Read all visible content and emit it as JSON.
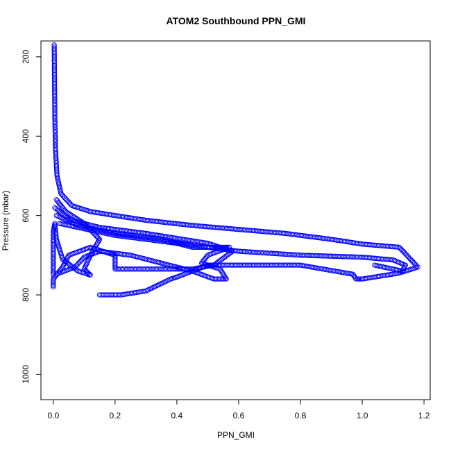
{
  "chart_data": {
    "type": "scatter",
    "title": "ATOM2 Southbound PPN_GMI",
    "xlabel": "PPN_GMI",
    "ylabel": "Pressure (mbar)",
    "xlim": [
      -0.04,
      1.22
    ],
    "ylim": [
      1064,
      160
    ],
    "y_reversed": true,
    "xticks": [
      0.0,
      0.2,
      0.4,
      0.6,
      0.8,
      1.0,
      1.2
    ],
    "xtick_labels": [
      "0.0",
      "0.2",
      "0.4",
      "0.6",
      "0.8",
      "1.0",
      "1.2"
    ],
    "yticks": [
      200,
      400,
      600,
      800,
      1000
    ],
    "ytick_labels": [
      "200",
      "400",
      "600",
      "800",
      "1000"
    ],
    "grid": false,
    "marker": "open-circle",
    "color": "#0000ff",
    "series": [
      {
        "points": [
          [
            0.003,
            170
          ],
          [
            0.004,
            260
          ],
          [
            0.005,
            350
          ],
          [
            0.007,
            430
          ],
          [
            0.012,
            500
          ],
          [
            0.025,
            545
          ],
          [
            0.06,
            575
          ],
          [
            0.12,
            590
          ],
          [
            0.2,
            600
          ],
          [
            0.3,
            612
          ],
          [
            0.45,
            625
          ],
          [
            0.6,
            635
          ],
          [
            0.75,
            645
          ],
          [
            0.9,
            660
          ],
          [
            1.0,
            672
          ],
          [
            1.12,
            680
          ],
          [
            1.18,
            730
          ],
          [
            1.12,
            745
          ],
          [
            1.0,
            760
          ],
          [
            0.98,
            760
          ],
          [
            0.97,
            748
          ],
          [
            0.8,
            725
          ],
          [
            0.6,
            725
          ],
          [
            0.5,
            725
          ],
          [
            0.4,
            755
          ],
          [
            0.38,
            760
          ],
          [
            0.3,
            790
          ],
          [
            0.22,
            800
          ],
          [
            0.15,
            800
          ]
        ]
      },
      {
        "points": [
          [
            0.005,
            580
          ],
          [
            0.05,
            610
          ],
          [
            0.15,
            630
          ],
          [
            0.3,
            645
          ],
          [
            0.5,
            670
          ],
          [
            0.58,
            690
          ],
          [
            0.52,
            725
          ],
          [
            0.45,
            735
          ],
          [
            0.3,
            735
          ],
          [
            0.2,
            735
          ],
          [
            0.2,
            700
          ],
          [
            0.12,
            680
          ],
          [
            0.05,
            700
          ],
          [
            0.03,
            730
          ],
          [
            0.0,
            760
          ],
          [
            0.0,
            780
          ]
        ]
      },
      {
        "points": [
          [
            0.01,
            600
          ],
          [
            0.08,
            625
          ],
          [
            0.2,
            645
          ],
          [
            0.35,
            660
          ],
          [
            0.45,
            680
          ],
          [
            0.57,
            680
          ],
          [
            0.5,
            700
          ],
          [
            0.48,
            720
          ],
          [
            0.54,
            735
          ],
          [
            0.56,
            760
          ],
          [
            0.52,
            760
          ],
          [
            0.45,
            740
          ],
          [
            0.35,
            720
          ],
          [
            0.25,
            700
          ],
          [
            0.15,
            690
          ],
          [
            0.1,
            705
          ],
          [
            0.07,
            730
          ],
          [
            0.02,
            745
          ]
        ]
      },
      {
        "points": [
          [
            0.01,
            560
          ],
          [
            0.04,
            590
          ],
          [
            0.1,
            620
          ],
          [
            0.15,
            660
          ],
          [
            0.12,
            700
          ],
          [
            0.1,
            735
          ],
          [
            0.12,
            750
          ],
          [
            0.08,
            740
          ],
          [
            0.03,
            710
          ],
          [
            0.01,
            660
          ],
          [
            0.005,
            620
          ],
          [
            0.0,
            640
          ],
          [
            0.0,
            700
          ],
          [
            0.0,
            750
          ]
        ]
      },
      {
        "points": [
          [
            0.02,
            620
          ],
          [
            0.2,
            650
          ],
          [
            0.4,
            670
          ],
          [
            0.6,
            690
          ],
          [
            0.8,
            700
          ],
          [
            1.0,
            705
          ],
          [
            1.1,
            712
          ],
          [
            1.14,
            725
          ],
          [
            1.13,
            740
          ],
          [
            1.04,
            725
          ]
        ]
      }
    ]
  }
}
